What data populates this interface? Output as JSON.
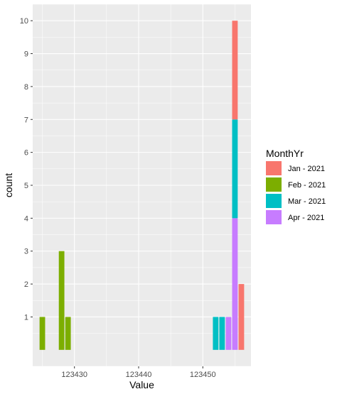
{
  "chart_data": {
    "type": "bar",
    "stacked": true,
    "xlabel": "Value",
    "ylabel": "count",
    "xlim": [
      123423.5,
      123457.5
    ],
    "ylim": [
      -0.5,
      10.5
    ],
    "x_ticks": [
      123430,
      123440,
      123450
    ],
    "x_tick_labels": [
      "123430",
      "123440",
      "123450"
    ],
    "y_ticks": [
      1,
      2,
      3,
      4,
      5,
      6,
      7,
      8,
      9,
      10
    ],
    "y_tick_labels": [
      "1",
      "2",
      "3",
      "4",
      "5",
      "6",
      "7",
      "8",
      "9",
      "10"
    ],
    "grid": true,
    "panel_background": "#ebebeb",
    "grid_color": "#ffffff",
    "bin_width": 1,
    "legend": {
      "title": "MonthYr",
      "position": "right"
    },
    "series": [
      {
        "name": "Jan - 2021",
        "color": "#f8766d",
        "bins": [
          {
            "x": 123455,
            "count": 3
          },
          {
            "x": 123456,
            "count": 2
          }
        ]
      },
      {
        "name": "Feb - 2021",
        "color": "#7cae00",
        "bins": [
          {
            "x": 123425,
            "count": 1
          },
          {
            "x": 123428,
            "count": 3
          },
          {
            "x": 123429,
            "count": 1
          }
        ]
      },
      {
        "name": "Mar - 2021",
        "color": "#00bfc4",
        "bins": [
          {
            "x": 123452,
            "count": 1
          },
          {
            "x": 123453,
            "count": 1
          },
          {
            "x": 123455,
            "count": 3
          }
        ]
      },
      {
        "name": "Apr - 2021",
        "color": "#c77cff",
        "bins": [
          {
            "x": 123454,
            "count": 1
          },
          {
            "x": 123455,
            "count": 4
          }
        ]
      }
    ]
  }
}
